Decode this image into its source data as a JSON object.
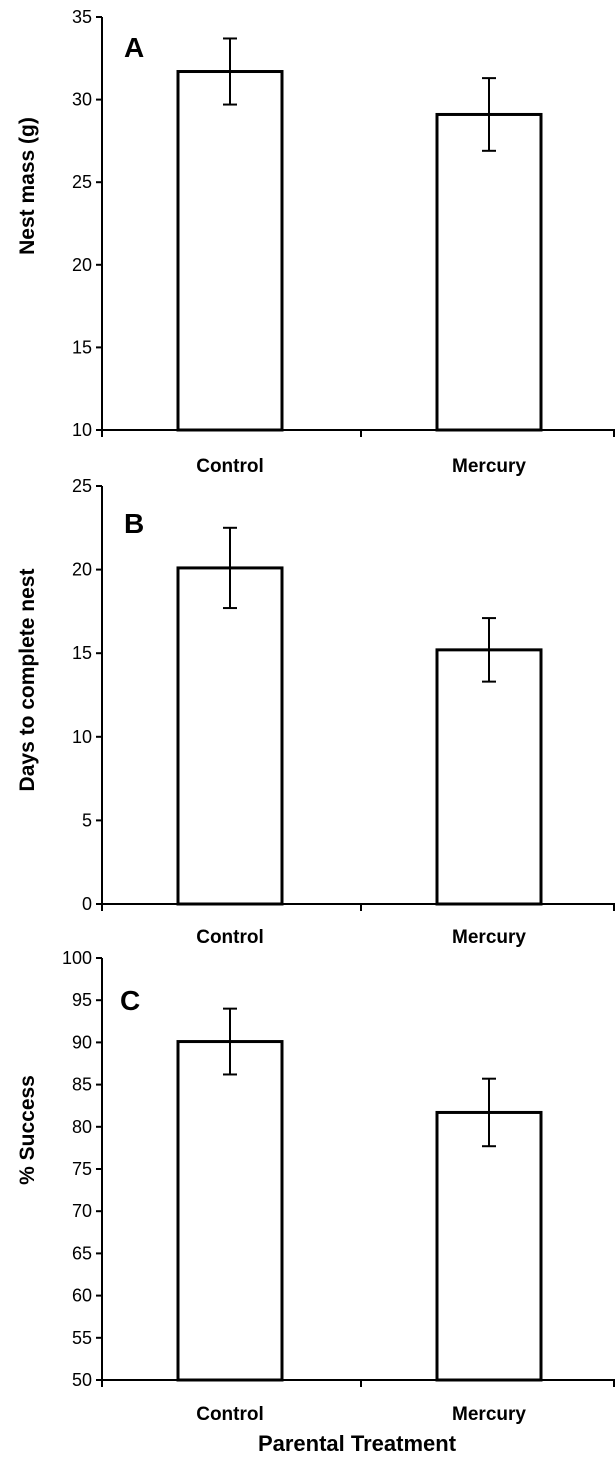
{
  "chart_data": [
    {
      "type": "bar",
      "panel": "A",
      "categories": [
        "Control",
        "Mercury"
      ],
      "values": [
        31.7,
        29.1
      ],
      "errors": [
        2.0,
        2.2
      ],
      "ylabel": "Nest mass (g)",
      "ylim": [
        10,
        35
      ],
      "yticks": [
        10,
        15,
        20,
        25,
        30,
        35
      ],
      "grid": false
    },
    {
      "type": "bar",
      "panel": "B",
      "categories": [
        "Control",
        "Mercury"
      ],
      "values": [
        20.1,
        15.2
      ],
      "errors": [
        2.4,
        1.9
      ],
      "ylabel": "Days to complete nest",
      "ylim": [
        0,
        25
      ],
      "yticks": [
        0,
        5,
        10,
        15,
        20,
        25
      ],
      "grid": false
    },
    {
      "type": "bar",
      "panel": "C",
      "categories": [
        "Control",
        "Mercury"
      ],
      "values": [
        90.1,
        81.7
      ],
      "errors": [
        3.9,
        4.0
      ],
      "ylabel": "% Success",
      "xlabel": "Parental Treatment",
      "ylim": [
        50,
        100
      ],
      "yticks": [
        50,
        55,
        60,
        65,
        70,
        75,
        80,
        85,
        90,
        95,
        100
      ],
      "grid": false
    }
  ],
  "colors": {
    "bar_fill": "#ffffff",
    "bar_stroke": "#000000",
    "axis": "#000000"
  }
}
